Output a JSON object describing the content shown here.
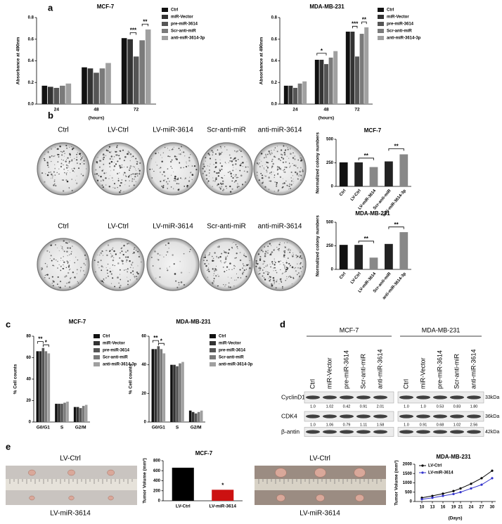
{
  "panel_labels": [
    "a",
    "b",
    "c",
    "d",
    "e"
  ],
  "chart_data": [
    {
      "type": "bar",
      "title": "MCF-7",
      "y_label": "Absorbance at 490nm",
      "x_label": "(hours)",
      "categories": [
        "24",
        "48",
        "72"
      ],
      "series": [
        {
          "name": "Ctrl",
          "color": "#111111",
          "values": [
            0.17,
            0.34,
            0.61
          ]
        },
        {
          "name": "miR-Vector",
          "color": "#333333",
          "values": [
            0.16,
            0.33,
            0.6
          ]
        },
        {
          "name": "pre-miR-3614",
          "color": "#555555",
          "values": [
            0.15,
            0.29,
            0.44
          ]
        },
        {
          "name": "Scr-anti-miR",
          "color": "#7a7a7a",
          "values": [
            0.17,
            0.33,
            0.59
          ]
        },
        {
          "name": "anti-miR-3614-3p",
          "color": "#a0a0a0",
          "values": [
            0.19,
            0.38,
            0.69
          ]
        }
      ],
      "ylim": [
        0,
        0.8
      ],
      "yticks": [
        {
          "value": 0,
          "label": "0.0"
        },
        0.2,
        0.4,
        0.6,
        0.8
      ],
      "legend": "right",
      "annotations": [
        "***",
        "**"
      ]
    },
    {
      "type": "bar",
      "title": "MDA-MB-231",
      "y_label": "Absorbance at 490nm",
      "x_label": "(hours)",
      "categories": [
        "24",
        "48",
        "72"
      ],
      "series": [
        {
          "name": "Ctrl",
          "color": "#111111",
          "values": [
            0.17,
            0.41,
            0.67
          ]
        },
        {
          "name": "miR-Vector",
          "color": "#333333",
          "values": [
            0.17,
            0.41,
            0.67
          ]
        },
        {
          "name": "pre-miR-3614",
          "color": "#555555",
          "values": [
            0.15,
            0.37,
            0.44
          ]
        },
        {
          "name": "Scr-anti-miR",
          "color": "#7a7a7a",
          "values": [
            0.19,
            0.43,
            0.65
          ]
        },
        {
          "name": "anti-miR-3614-3p",
          "color": "#a0a0a0",
          "values": [
            0.21,
            0.49,
            0.71
          ]
        }
      ],
      "ylim": [
        0,
        0.8
      ],
      "yticks": [
        {
          "value": 0,
          "label": "0.0"
        },
        0.2,
        0.4,
        0.6,
        0.8
      ],
      "legend": "right",
      "annotations": [
        "*",
        "***",
        "**"
      ]
    },
    {
      "type": "bar",
      "title": "MCF-7",
      "y_label": "Normalized colony numbers",
      "categories": [
        "Ctrl",
        "LV-Ctrl",
        "LV-miR-3614",
        "Scr-anti-miR",
        "anti-miR-3614-3p"
      ],
      "values": [
        255,
        255,
        205,
        265,
        340
      ],
      "colors": [
        "#111111",
        "#222222",
        "#888888",
        "#222222",
        "#888888"
      ],
      "ylim": [
        0,
        500
      ],
      "yticks": [
        0,
        250,
        500
      ],
      "annotations": [
        "**",
        "**"
      ]
    },
    {
      "type": "bar",
      "title": "MDA-MB-231",
      "y_label": "Normalized colony numbers",
      "categories": [
        "Ctrl",
        "LV-Ctrl",
        "LV-miR-3614",
        "Scr-anti-miR",
        "anti-miR-3614-3p"
      ],
      "values": [
        260,
        260,
        125,
        270,
        395
      ],
      "colors": [
        "#111111",
        "#222222",
        "#888888",
        "#222222",
        "#888888"
      ],
      "ylim": [
        0,
        500
      ],
      "yticks": [
        0,
        250,
        500
      ],
      "annotations": [
        "**",
        "**"
      ]
    },
    {
      "type": "bar",
      "title": "MCF-7",
      "y_label": "% Cell counts",
      "categories": [
        "G0/G1",
        "S",
        "G2/M"
      ],
      "series": [
        {
          "name": "Ctrl",
          "color": "#111111",
          "values": [
            66,
            17,
            14
          ]
        },
        {
          "name": "miR-Vector",
          "color": "#333333",
          "values": [
            66,
            17,
            14
          ]
        },
        {
          "name": "pre-miR-3614",
          "color": "#555555",
          "values": [
            69,
            17,
            13
          ]
        },
        {
          "name": "Scr-anti-miR",
          "color": "#7a7a7a",
          "values": [
            66,
            18,
            15
          ]
        },
        {
          "name": "anti-miR-3614-3p",
          "color": "#a0a0a0",
          "values": [
            64,
            19,
            16
          ]
        }
      ],
      "ylim": [
        0,
        80
      ],
      "yticks": [
        0,
        20,
        40,
        60,
        80
      ],
      "legend": "right",
      "annotations": [
        "**",
        "*"
      ]
    },
    {
      "type": "bar",
      "title": "MDA-MB-231",
      "y_label": "% Cell counts",
      "categories": [
        "G0/G1",
        "S",
        "G2/M"
      ],
      "series": [
        {
          "name": "Ctrl",
          "color": "#111111",
          "values": [
            51,
            40,
            8
          ]
        },
        {
          "name": "miR-Vector",
          "color": "#333333",
          "values": [
            51,
            40,
            7
          ]
        },
        {
          "name": "pre-miR-3614",
          "color": "#555555",
          "values": [
            53,
            39,
            6
          ]
        },
        {
          "name": "Scr-anti-miR",
          "color": "#7a7a7a",
          "values": [
            51,
            41,
            7
          ]
        },
        {
          "name": "anti-miR-3614-3p",
          "color": "#a0a0a0",
          "values": [
            48,
            42,
            8
          ]
        }
      ],
      "ylim": [
        0,
        60
      ],
      "yticks": [
        0,
        20,
        40,
        60
      ],
      "legend": "right",
      "annotations": [
        "**",
        "*"
      ]
    },
    {
      "type": "bar",
      "title": "MCF-7",
      "y_label": "Tumor Volume (mm³)",
      "categories": [
        "LV-Ctrl",
        "LV-miR-3614"
      ],
      "values": [
        660,
        220
      ],
      "colors": [
        "#000000",
        "#cc1111"
      ],
      "ylim": [
        0,
        800
      ],
      "yticks": [
        0,
        200,
        400,
        600,
        800
      ],
      "annotations": [
        "*"
      ]
    },
    {
      "type": "line",
      "title": "MDA-MB-231",
      "y_label": "Tumor Volume (mm³)",
      "x_label": "(Days)",
      "x": [
        10,
        13,
        16,
        19,
        21,
        24,
        27,
        30
      ],
      "series": [
        {
          "name": "LV-Ctrl",
          "color": "#000000",
          "values": [
            200,
            300,
            420,
            560,
            700,
            950,
            1250,
            1650
          ]
        },
        {
          "name": "LV-miR-3614",
          "color": "#3333cc",
          "values": [
            120,
            200,
            300,
            400,
            500,
            700,
            900,
            1250
          ]
        }
      ],
      "xlim": [
        8,
        31
      ],
      "xticks": [
        10,
        13,
        16,
        19,
        21,
        24,
        27,
        30
      ],
      "ylim": [
        0,
        2000
      ],
      "yticks": [
        0,
        500,
        1000,
        1500,
        2000
      ],
      "legend": "upper left"
    }
  ],
  "colony_plates": {
    "rows": [
      [
        "Ctrl",
        "LV-Ctrl",
        "LV-miR-3614",
        "Scr-anti-miR",
        "anti-miR-3614"
      ],
      [
        "Ctrl",
        "LV-Ctrl",
        "LV-miR-3614",
        "Scr-anti-miR",
        "anti-miR-3614"
      ]
    ]
  },
  "western_blot": {
    "groups": [
      "MCF-7",
      "MDA-MB-231"
    ],
    "lanes": [
      [
        "Ctrl",
        "miR-Vector",
        "pre-miR-3614",
        "Scr-anti-miR",
        "anti-miR-3614"
      ],
      [
        "Ctrl",
        "miR-Vector",
        "pre-miR-3614",
        "Scr-anti-miR",
        "anti-miR-3614"
      ]
    ],
    "rows": [
      {
        "label": "CyclinD1",
        "kda": "33kDa",
        "ratios": [
          [
            "1.0",
            "1.02",
            "0.42",
            "0.91",
            "2.01"
          ],
          [
            "1.0",
            "1.0",
            "0.53",
            "0.83",
            "1.80"
          ]
        ]
      },
      {
        "label": "CDK4",
        "kda": "36kDa",
        "ratios": [
          [
            "1.0",
            "1.06",
            "0.79",
            "1.11",
            "1.58"
          ],
          [
            "1.0",
            "0.91",
            "0.68",
            "1.02",
            "2.56"
          ]
        ]
      },
      {
        "label": "β-antin",
        "kda": "42kDa"
      }
    ]
  },
  "xenograft_photos": [
    {
      "top": "LV-Ctrl",
      "bottom": "LV-miR-3614"
    },
    {
      "top": "LV-Ctrl",
      "bottom": "LV-miR-3614"
    }
  ]
}
